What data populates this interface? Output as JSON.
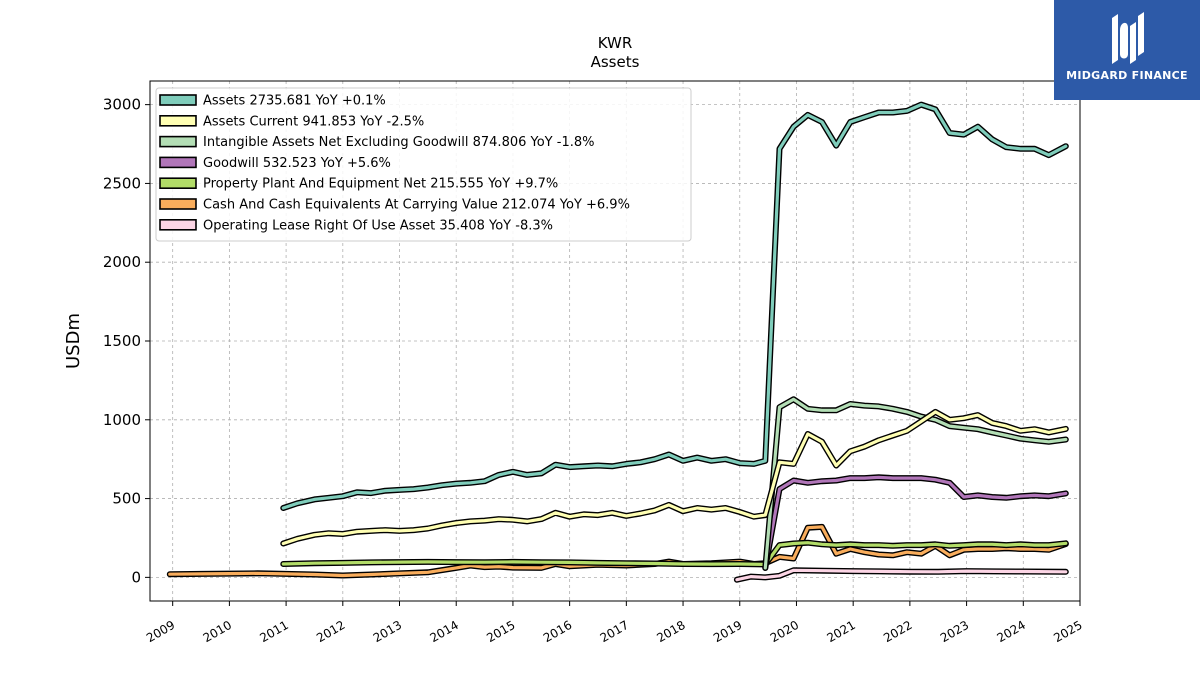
{
  "chart_data": {
    "type": "line",
    "title": "KWR",
    "subtitle": "Assets",
    "ylabel": "USDm",
    "xlabel": "",
    "xlim": [
      2008.6,
      2025.0
    ],
    "ylim": [
      -150,
      3150
    ],
    "yticks": [
      0,
      500,
      1000,
      1500,
      2000,
      2500,
      3000
    ],
    "xticks": [
      2009,
      2010,
      2011,
      2012,
      2013,
      2014,
      2015,
      2016,
      2017,
      2018,
      2019,
      2020,
      2021,
      2022,
      2023,
      2024,
      2025
    ],
    "grid": true,
    "legend_position": "top-left",
    "series": [
      {
        "name": "Assets  2735.681 YoY +0.1%",
        "color": "#7fcdbb",
        "points": [
          [
            2010.95,
            440
          ],
          [
            2011.2,
            470
          ],
          [
            2011.5,
            495
          ],
          [
            2011.75,
            505
          ],
          [
            2012.0,
            515
          ],
          [
            2012.25,
            540
          ],
          [
            2012.5,
            535
          ],
          [
            2012.75,
            550
          ],
          [
            2013.0,
            555
          ],
          [
            2013.25,
            560
          ],
          [
            2013.5,
            570
          ],
          [
            2013.75,
            585
          ],
          [
            2014.0,
            595
          ],
          [
            2014.25,
            600
          ],
          [
            2014.5,
            610
          ],
          [
            2014.75,
            650
          ],
          [
            2015.0,
            670
          ],
          [
            2015.25,
            650
          ],
          [
            2015.5,
            660
          ],
          [
            2015.75,
            715
          ],
          [
            2016.0,
            700
          ],
          [
            2016.25,
            705
          ],
          [
            2016.5,
            710
          ],
          [
            2016.75,
            705
          ],
          [
            2017.0,
            720
          ],
          [
            2017.25,
            730
          ],
          [
            2017.5,
            750
          ],
          [
            2017.75,
            780
          ],
          [
            2018.0,
            740
          ],
          [
            2018.25,
            760
          ],
          [
            2018.5,
            740
          ],
          [
            2018.75,
            750
          ],
          [
            2019.0,
            725
          ],
          [
            2019.25,
            720
          ],
          [
            2019.45,
            740
          ],
          [
            2019.7,
            2720
          ],
          [
            2019.95,
            2860
          ],
          [
            2020.2,
            2935
          ],
          [
            2020.45,
            2890
          ],
          [
            2020.7,
            2740
          ],
          [
            2020.95,
            2890
          ],
          [
            2021.2,
            2920
          ],
          [
            2021.45,
            2950
          ],
          [
            2021.7,
            2950
          ],
          [
            2021.95,
            2960
          ],
          [
            2022.2,
            3000
          ],
          [
            2022.45,
            2970
          ],
          [
            2022.7,
            2820
          ],
          [
            2022.95,
            2810
          ],
          [
            2023.2,
            2860
          ],
          [
            2023.45,
            2780
          ],
          [
            2023.7,
            2730
          ],
          [
            2023.95,
            2720
          ],
          [
            2024.2,
            2720
          ],
          [
            2024.45,
            2680
          ],
          [
            2024.75,
            2736
          ]
        ]
      },
      {
        "name": "Assets Current  941.853 YoY -2.5%",
        "color": "#ffffb3",
        "points": [
          [
            2010.95,
            215
          ],
          [
            2011.2,
            245
          ],
          [
            2011.5,
            270
          ],
          [
            2011.75,
            280
          ],
          [
            2012.0,
            275
          ],
          [
            2012.25,
            290
          ],
          [
            2012.5,
            295
          ],
          [
            2012.75,
            300
          ],
          [
            2013.0,
            295
          ],
          [
            2013.25,
            300
          ],
          [
            2013.5,
            310
          ],
          [
            2013.75,
            330
          ],
          [
            2014.0,
            345
          ],
          [
            2014.25,
            355
          ],
          [
            2014.5,
            360
          ],
          [
            2014.75,
            370
          ],
          [
            2015.0,
            365
          ],
          [
            2015.25,
            355
          ],
          [
            2015.5,
            370
          ],
          [
            2015.75,
            410
          ],
          [
            2016.0,
            385
          ],
          [
            2016.25,
            400
          ],
          [
            2016.5,
            395
          ],
          [
            2016.75,
            410
          ],
          [
            2017.0,
            390
          ],
          [
            2017.25,
            405
          ],
          [
            2017.5,
            425
          ],
          [
            2017.75,
            460
          ],
          [
            2018.0,
            420
          ],
          [
            2018.25,
            440
          ],
          [
            2018.5,
            430
          ],
          [
            2018.75,
            440
          ],
          [
            2019.0,
            415
          ],
          [
            2019.25,
            385
          ],
          [
            2019.45,
            395
          ],
          [
            2019.7,
            730
          ],
          [
            2019.95,
            720
          ],
          [
            2020.2,
            910
          ],
          [
            2020.45,
            860
          ],
          [
            2020.7,
            710
          ],
          [
            2020.95,
            800
          ],
          [
            2021.2,
            830
          ],
          [
            2021.45,
            870
          ],
          [
            2021.7,
            900
          ],
          [
            2021.95,
            930
          ],
          [
            2022.2,
            990
          ],
          [
            2022.45,
            1050
          ],
          [
            2022.7,
            1000
          ],
          [
            2022.95,
            1010
          ],
          [
            2023.2,
            1030
          ],
          [
            2023.45,
            980
          ],
          [
            2023.7,
            960
          ],
          [
            2023.95,
            930
          ],
          [
            2024.2,
            940
          ],
          [
            2024.45,
            920
          ],
          [
            2024.75,
            942
          ]
        ]
      },
      {
        "name": "Intangible Assets Net Excluding Goodwill  874.806 YoY -1.8%",
        "color": "#b3deb5",
        "points": [
          [
            2019.45,
            60
          ],
          [
            2019.7,
            1080
          ],
          [
            2019.95,
            1130
          ],
          [
            2020.2,
            1070
          ],
          [
            2020.45,
            1060
          ],
          [
            2020.7,
            1060
          ],
          [
            2020.95,
            1100
          ],
          [
            2021.2,
            1090
          ],
          [
            2021.45,
            1085
          ],
          [
            2021.7,
            1070
          ],
          [
            2021.95,
            1050
          ],
          [
            2022.2,
            1020
          ],
          [
            2022.45,
            1000
          ],
          [
            2022.7,
            960
          ],
          [
            2022.95,
            950
          ],
          [
            2023.2,
            940
          ],
          [
            2023.45,
            920
          ],
          [
            2023.7,
            900
          ],
          [
            2023.95,
            880
          ],
          [
            2024.2,
            870
          ],
          [
            2024.45,
            860
          ],
          [
            2024.75,
            875
          ]
        ]
      },
      {
        "name": "Goodwill  532.523 YoY +5.6%",
        "color": "#b176b9",
        "points": [
          [
            2019.45,
            60
          ],
          [
            2019.7,
            560
          ],
          [
            2019.95,
            615
          ],
          [
            2020.2,
            600
          ],
          [
            2020.45,
            610
          ],
          [
            2020.7,
            615
          ],
          [
            2020.95,
            630
          ],
          [
            2021.2,
            630
          ],
          [
            2021.45,
            635
          ],
          [
            2021.7,
            630
          ],
          [
            2021.95,
            630
          ],
          [
            2022.2,
            630
          ],
          [
            2022.45,
            620
          ],
          [
            2022.7,
            600
          ],
          [
            2022.95,
            510
          ],
          [
            2023.2,
            520
          ],
          [
            2023.45,
            510
          ],
          [
            2023.7,
            505
          ],
          [
            2023.95,
            515
          ],
          [
            2024.2,
            520
          ],
          [
            2024.45,
            515
          ],
          [
            2024.75,
            533
          ]
        ]
      },
      {
        "name": "Property Plant And Equipment Net  215.555 YoY +9.7%",
        "color": "#b2dc68",
        "points": [
          [
            2010.95,
            85
          ],
          [
            2011.5,
            90
          ],
          [
            2012.0,
            92
          ],
          [
            2012.5,
            95
          ],
          [
            2013.0,
            97
          ],
          [
            2013.5,
            98
          ],
          [
            2014.0,
            97
          ],
          [
            2014.5,
            96
          ],
          [
            2015.0,
            98
          ],
          [
            2015.5,
            96
          ],
          [
            2016.0,
            95
          ],
          [
            2016.5,
            92
          ],
          [
            2017.0,
            90
          ],
          [
            2017.5,
            88
          ],
          [
            2018.0,
            85
          ],
          [
            2018.5,
            84
          ],
          [
            2019.0,
            85
          ],
          [
            2019.45,
            82
          ],
          [
            2019.7,
            205
          ],
          [
            2019.95,
            215
          ],
          [
            2020.2,
            220
          ],
          [
            2020.45,
            210
          ],
          [
            2020.7,
            205
          ],
          [
            2020.95,
            210
          ],
          [
            2021.2,
            205
          ],
          [
            2021.45,
            205
          ],
          [
            2021.7,
            200
          ],
          [
            2021.95,
            205
          ],
          [
            2022.2,
            205
          ],
          [
            2022.45,
            210
          ],
          [
            2022.7,
            200
          ],
          [
            2022.95,
            205
          ],
          [
            2023.2,
            210
          ],
          [
            2023.45,
            210
          ],
          [
            2023.7,
            205
          ],
          [
            2023.95,
            210
          ],
          [
            2024.2,
            205
          ],
          [
            2024.45,
            205
          ],
          [
            2024.75,
            216
          ]
        ]
      },
      {
        "name": "Cash And Cash Equivalents At Carrying Value  212.074 YoY +6.9%",
        "color": "#f9ad5c",
        "points": [
          [
            2008.95,
            20
          ],
          [
            2009.5,
            22
          ],
          [
            2010.0,
            24
          ],
          [
            2010.5,
            26
          ],
          [
            2011.0,
            22
          ],
          [
            2011.5,
            18
          ],
          [
            2012.0,
            12
          ],
          [
            2012.5,
            18
          ],
          [
            2013.0,
            25
          ],
          [
            2013.5,
            32
          ],
          [
            2014.0,
            60
          ],
          [
            2014.25,
            75
          ],
          [
            2014.5,
            65
          ],
          [
            2014.75,
            68
          ],
          [
            2015.0,
            62
          ],
          [
            2015.5,
            60
          ],
          [
            2015.75,
            85
          ],
          [
            2016.0,
            70
          ],
          [
            2016.5,
            80
          ],
          [
            2017.0,
            75
          ],
          [
            2017.5,
            85
          ],
          [
            2017.75,
            100
          ],
          [
            2018.0,
            85
          ],
          [
            2018.5,
            90
          ],
          [
            2019.0,
            100
          ],
          [
            2019.25,
            85
          ],
          [
            2019.45,
            90
          ],
          [
            2019.7,
            130
          ],
          [
            2019.95,
            120
          ],
          [
            2020.2,
            315
          ],
          [
            2020.45,
            320
          ],
          [
            2020.7,
            150
          ],
          [
            2020.95,
            180
          ],
          [
            2021.2,
            160
          ],
          [
            2021.45,
            145
          ],
          [
            2021.7,
            140
          ],
          [
            2021.95,
            160
          ],
          [
            2022.2,
            150
          ],
          [
            2022.45,
            200
          ],
          [
            2022.7,
            140
          ],
          [
            2022.95,
            175
          ],
          [
            2023.2,
            180
          ],
          [
            2023.45,
            180
          ],
          [
            2023.7,
            185
          ],
          [
            2023.95,
            180
          ],
          [
            2024.2,
            180
          ],
          [
            2024.45,
            175
          ],
          [
            2024.75,
            212
          ]
        ]
      },
      {
        "name": "Operating Lease Right Of Use Asset  35.408 YoY -8.3%",
        "color": "#fcd5e5",
        "points": [
          [
            2018.95,
            -15
          ],
          [
            2019.2,
            5
          ],
          [
            2019.45,
            0
          ],
          [
            2019.7,
            10
          ],
          [
            2019.95,
            45
          ],
          [
            2020.5,
            42
          ],
          [
            2021.0,
            40
          ],
          [
            2021.5,
            38
          ],
          [
            2022.0,
            36
          ],
          [
            2022.5,
            35
          ],
          [
            2023.0,
            40
          ],
          [
            2023.5,
            38
          ],
          [
            2024.0,
            37
          ],
          [
            2024.75,
            35
          ]
        ]
      }
    ]
  },
  "logo": {
    "text": "MIDGARD FINANCE"
  }
}
